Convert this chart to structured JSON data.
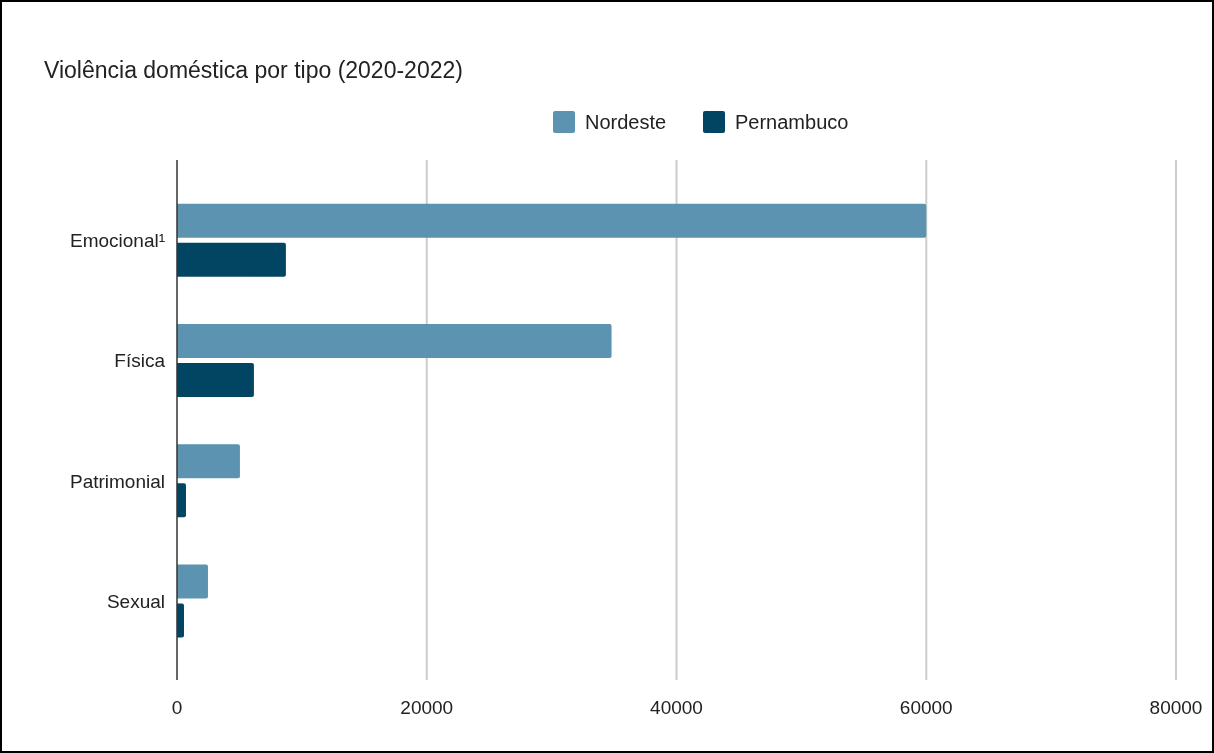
{
  "chart_data": {
    "type": "bar",
    "orientation": "horizontal",
    "title": "Violência doméstica por tipo (2020-2022)",
    "categories": [
      "Emocional¹",
      "Física",
      "Patrimonial",
      "Sexual"
    ],
    "series": [
      {
        "name": "Nordeste",
        "color": "#5b93b1",
        "values": [
          60000,
          34800,
          5040,
          2480
        ]
      },
      {
        "name": "Pernambuco",
        "color": "#024562",
        "values": [
          8720,
          6160,
          720,
          560
        ]
      }
    ],
    "xlim": [
      0,
      80000
    ],
    "xticks": [
      0,
      20000,
      40000,
      60000,
      80000
    ],
    "grid": "x",
    "legend": "top"
  }
}
